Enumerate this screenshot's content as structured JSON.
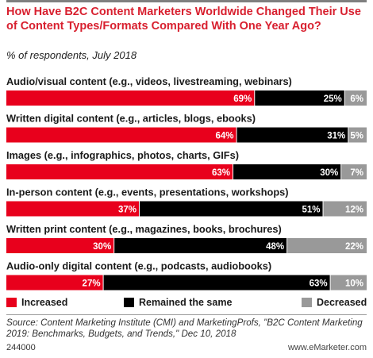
{
  "title": "How Have B2C Content Marketers Worldwide Changed Their Use of Content Types/Formats Compared With One Year Ago?",
  "subtitle": "% of respondents, July 2018",
  "colors": {
    "increased": "#e8001c",
    "same": "#000000",
    "decreased": "#999999",
    "title": "#d8202f"
  },
  "chart_data": {
    "type": "bar",
    "orientation": "horizontal-stacked-100",
    "categories": [
      "Audio/visual content (e.g., videos, livestreaming, webinars)",
      "Written digital content (e.g., articles, blogs, ebooks)",
      "Images (e.g., infographics, photos, charts, GIFs)",
      "In-person content (e.g., events, presentations, workshops)",
      "Written print content (e.g., magazines, books, brochures)",
      "Audio-only digital content (e.g., podcasts, audiobooks)"
    ],
    "series": [
      {
        "name": "Increased",
        "values": [
          69,
          64,
          63,
          37,
          30,
          27
        ]
      },
      {
        "name": "Remained the same",
        "values": [
          25,
          31,
          30,
          51,
          48,
          63
        ]
      },
      {
        "name": "Decreased",
        "values": [
          6,
          5,
          7,
          12,
          22,
          10
        ]
      }
    ],
    "unit": "%",
    "legend_position": "bottom"
  },
  "source": "Source: Content Marketing Institute (CMI) and MarketingProfs, \"B2C Content Marketing 2019: Benchmarks, Budgets, and Trends,\" Dec 10, 2018",
  "footer": {
    "id": "244000",
    "brand": "www.eMarketer.com"
  }
}
